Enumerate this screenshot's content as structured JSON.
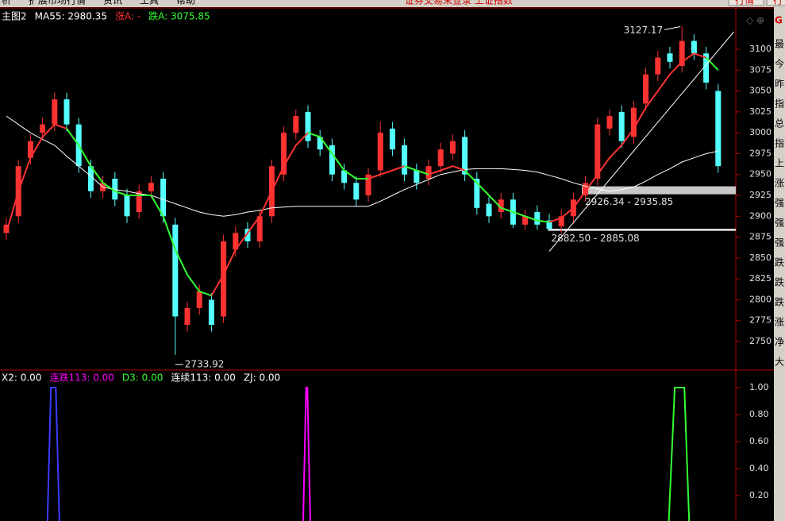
{
  "menu": {
    "items": [
      "析",
      "扩展市场行情",
      "资讯",
      "工具",
      "帮助"
    ],
    "status": "证券交易未登录 上证指数",
    "buttons": [
      "行情",
      "行"
    ]
  },
  "side_panel": {
    "title": "G",
    "labels": [
      "最",
      "今",
      "昨",
      "指",
      "总",
      "指",
      "上",
      "涨",
      "强",
      "强",
      "强",
      "跌",
      "跌",
      "跌",
      "涨",
      "净",
      "大"
    ]
  },
  "chart_data": [
    {
      "type": "candlestick",
      "header": [
        {
          "text": "主图2",
          "color": "#ffffff"
        },
        {
          "text": "MA55: 2980.35",
          "color": "#ffffff"
        },
        {
          "text": "涨A: -",
          "color": "#ff3232"
        },
        {
          "text": "跌A: 3075.85",
          "color": "#32ff32"
        }
      ],
      "up_color": "#ff3232",
      "down_color": "#54ffff",
      "open": [
        2880,
        2900,
        2970,
        3000,
        3010,
        3040,
        3010,
        2960,
        2930,
        2945,
        2925,
        2905,
        2930,
        2945,
        2890,
        2770,
        2790,
        2800,
        2780,
        2860,
        2885,
        2870,
        2900,
        2950,
        3000,
        3025,
        2995,
        2985,
        2955,
        2940,
        2925,
        2955,
        3005,
        2985,
        2955,
        2945,
        2960,
        2975,
        2995,
        2945,
        2915,
        2905,
        2920,
        2890,
        2905,
        2895,
        2888,
        2900,
        2925,
        2945,
        3005,
        3025,
        2995,
        3035,
        3070,
        3095,
        3080,
        3110,
        3095,
        3050
      ],
      "high": [
        2898,
        2968,
        2998,
        3018,
        3048,
        3048,
        3018,
        2968,
        2948,
        2953,
        2933,
        2938,
        2948,
        2953,
        2898,
        2798,
        2818,
        2808,
        2878,
        2888,
        2893,
        2908,
        2968,
        3008,
        3028,
        3033,
        3003,
        2993,
        2963,
        2948,
        2958,
        3013,
        3013,
        2993,
        2963,
        2968,
        2988,
        2998,
        3003,
        2953,
        2923,
        2928,
        2928,
        2908,
        2913,
        2903,
        2908,
        2928,
        2948,
        3018,
        3028,
        3033,
        3038,
        3078,
        3098,
        3103,
        3127.17,
        3118,
        3103,
        3058
      ],
      "low": [
        2872,
        2892,
        2962,
        2992,
        3002,
        3002,
        2952,
        2922,
        2922,
        2912,
        2892,
        2897,
        2922,
        2892,
        2733.92,
        2762,
        2782,
        2762,
        2772,
        2852,
        2862,
        2862,
        2892,
        2942,
        2992,
        2982,
        2972,
        2942,
        2932,
        2912,
        2917,
        2947,
        2972,
        2942,
        2932,
        2937,
        2952,
        2967,
        2942,
        2902,
        2892,
        2897,
        2886,
        2884,
        2884,
        2882.5,
        2880,
        2892,
        2917,
        2937,
        2997,
        2982,
        2987,
        3027,
        3062,
        3077,
        3072,
        3087,
        3052,
        2952
      ],
      "close": [
        2890,
        2960,
        2990,
        3010,
        3040,
        3010,
        2960,
        2930,
        2940,
        2920,
        2900,
        2930,
        2940,
        2900,
        2780,
        2790,
        2810,
        2770,
        2870,
        2880,
        2870,
        2900,
        2960,
        3000,
        3020,
        2990,
        2980,
        2950,
        2940,
        2920,
        2950,
        3000,
        2980,
        2950,
        2940,
        2960,
        2980,
        2990,
        2950,
        2910,
        2900,
        2920,
        2890,
        2900,
        2890,
        2885,
        2900,
        2920,
        2940,
        3010,
        3020,
        2990,
        3030,
        3070,
        3090,
        3085,
        3110,
        3095,
        3060,
        2960
      ],
      "lines": [
        {
          "name": "MA55",
          "color": "#ffffff",
          "values": [
            3020,
            3010,
            3000,
            2992,
            2985,
            2972,
            2960,
            2948,
            2935,
            2932,
            2930,
            2927,
            2925,
            2920,
            2915,
            2910,
            2905,
            2902,
            2900,
            2902,
            2905,
            2907,
            2910,
            2911,
            2912,
            2912,
            2912,
            2912,
            2912,
            2912,
            2912,
            2918,
            2925,
            2932,
            2938,
            2944,
            2950,
            2953,
            2956,
            2957,
            2957,
            2957,
            2956,
            2955,
            2953,
            2949,
            2945,
            2940,
            2936,
            2933,
            2930,
            2932,
            2935,
            2942,
            2950,
            2957,
            2965,
            2970,
            2975,
            2978
          ]
        },
        {
          "name": "涨A",
          "color": "#ff3232",
          "values": [
            2880,
            2930,
            2970,
            2995,
            3010,
            3005,
            null,
            null,
            null,
            null,
            null,
            null,
            null,
            null,
            null,
            null,
            null,
            2805,
            2830,
            2860,
            2880,
            2900,
            2930,
            2960,
            2985,
            3000,
            null,
            null,
            null,
            null,
            2945,
            2950,
            2955,
            2960,
            null,
            2950,
            2955,
            2960,
            2955,
            null,
            null,
            null,
            null,
            null,
            null,
            2893,
            2898,
            2910,
            2930,
            2950,
            2970,
            2985,
            3005,
            3030,
            3050,
            3070,
            3085,
            3095,
            3090,
            null
          ]
        },
        {
          "name": "跌A",
          "color": "#32ff32",
          "values": [
            null,
            null,
            null,
            null,
            null,
            3005,
            2985,
            2960,
            2940,
            2930,
            2925,
            2925,
            2925,
            2900,
            2860,
            2830,
            2810,
            2805,
            null,
            null,
            null,
            null,
            null,
            null,
            null,
            3000,
            2995,
            2975,
            2955,
            2945,
            2945,
            null,
            null,
            2960,
            2955,
            2950,
            null,
            null,
            2955,
            2940,
            2925,
            2910,
            2905,
            2900,
            2895,
            2893,
            null,
            null,
            null,
            null,
            null,
            null,
            null,
            null,
            null,
            null,
            null,
            null,
            3090,
            3075
          ]
        },
        {
          "name": "trendline",
          "color": "#ffffff",
          "x": [
            45,
            60.3
          ],
          "values": [
            2858,
            3121
          ]
        }
      ],
      "bands": [
        {
          "low": 2926.34,
          "high": 2935.85,
          "x_start": 47.7,
          "label": "2926.34 - 2935.85",
          "color": "#c8c8c8"
        },
        {
          "low": 2882.5,
          "high": 2885.08,
          "x_start": 44.9,
          "label": "2882.50 - 2885.08",
          "color": "#dcdcdc"
        }
      ],
      "annotations": [
        {
          "value": 3127.17,
          "x": 56,
          "side": "left"
        },
        {
          "value": 2733.92,
          "x": 14,
          "side": "right"
        }
      ],
      "ylim": [
        2716.7,
        3149.5
      ],
      "yticks": [
        2750,
        2775,
        2800,
        2825,
        2850,
        2875,
        2900,
        2925,
        2950,
        2975,
        3000,
        3025,
        3050,
        3075,
        3100
      ]
    },
    {
      "type": "line",
      "header": [
        {
          "text": "X2: 0.00",
          "color": "#ffffff"
        },
        {
          "text": "连跌113: 0.00",
          "color": "#ff00ff"
        },
        {
          "text": "D3: 0.00",
          "color": "#32ff32"
        },
        {
          "text": "连续113: 0.00",
          "color": "#ffffff"
        },
        {
          "text": "ZJ: 0.00",
          "color": "#ffffff"
        }
      ],
      "series": [
        {
          "name": "X2",
          "color": "#3c3cff",
          "x": [
            3.4,
            3.7,
            4.1,
            4.4
          ],
          "values": [
            0,
            1,
            1,
            0
          ]
        },
        {
          "name": "连跌113",
          "color": "#ff00ff",
          "x": [
            24.6,
            24.85,
            24.95,
            25.2
          ],
          "values": [
            0,
            1,
            1,
            0
          ]
        },
        {
          "name": "D3",
          "color": "#32ff32",
          "x": [
            54.9,
            55.4,
            56.2,
            56.6
          ],
          "values": [
            0,
            1,
            1,
            0
          ]
        }
      ],
      "ylim": [
        0.0118,
        1.1235
      ],
      "yticks": [
        {
          "value": 1,
          "label": "1.00"
        },
        {
          "value": 0.8,
          "label": "0.80"
        },
        {
          "value": 0.6,
          "label": "0.60"
        },
        {
          "value": 0.4,
          "label": "0.40"
        },
        {
          "value": 0.2,
          "label": "0.20"
        }
      ]
    }
  ]
}
